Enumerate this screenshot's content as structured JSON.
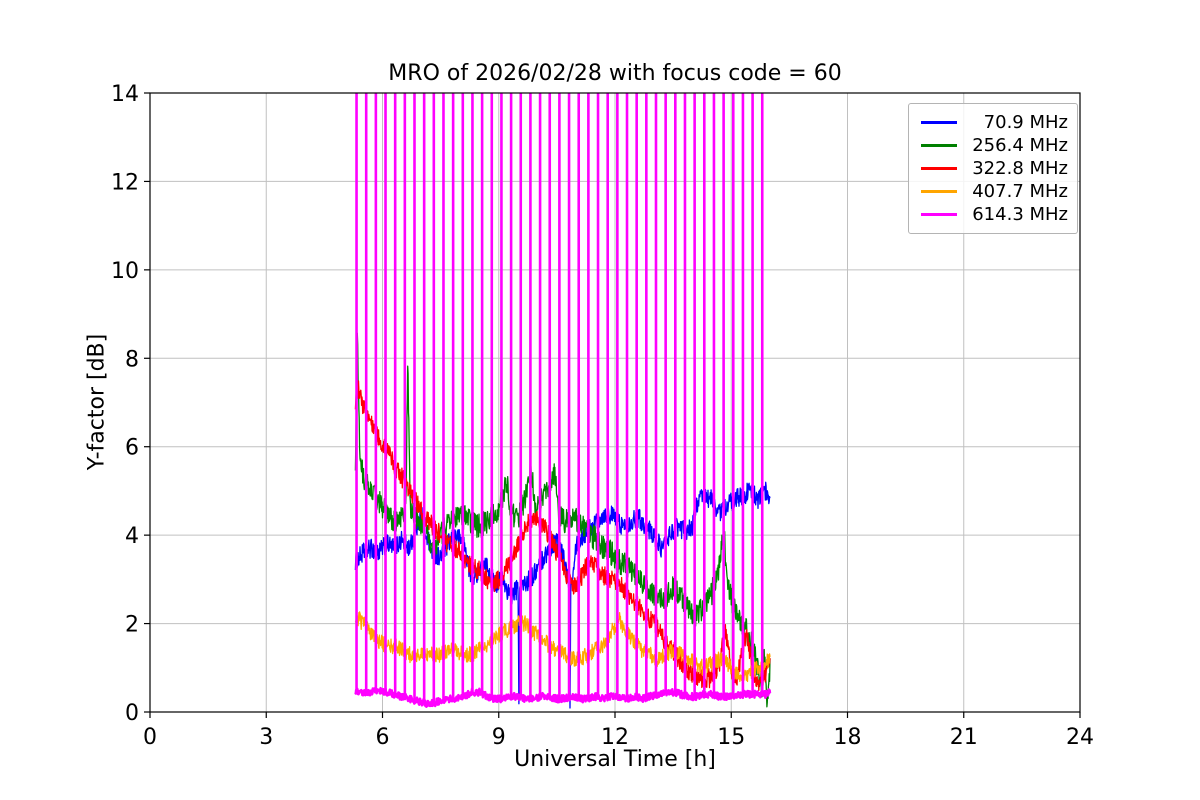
{
  "chart_data": {
    "type": "line",
    "title": "MRO of 2026/02/28 with focus code = 60",
    "xlabel": "Universal Time [h]",
    "ylabel": "Y-factor [dB]",
    "xlim": [
      0,
      24
    ],
    "ylim": [
      0,
      14
    ],
    "xticks": [
      0,
      3,
      6,
      9,
      12,
      15,
      18,
      21,
      24
    ],
    "yticks": [
      0,
      2,
      4,
      6,
      8,
      10,
      12,
      14
    ],
    "grid": true,
    "grid_color": "#c0c0c0",
    "axis_color": "#000000",
    "legend": {
      "position": "upper right",
      "entries": [
        "70.9 MHz",
        "256.4 MHz",
        "322.8 MHz",
        "407.7 MHz",
        "614.3 MHz"
      ]
    },
    "data_time_range_h": [
      5.3,
      16.0
    ],
    "series": [
      {
        "name": "70.9 MHz",
        "color": "#0000ff",
        "noise": 0.22,
        "width": 1.3,
        "points": [
          [
            5.3,
            3.4
          ],
          [
            5.5,
            3.6
          ],
          [
            5.7,
            3.7
          ],
          [
            5.9,
            3.6
          ],
          [
            6.1,
            3.8
          ],
          [
            6.3,
            3.7
          ],
          [
            6.5,
            3.9
          ],
          [
            6.7,
            3.7
          ],
          [
            6.9,
            4.2
          ],
          [
            7.0,
            4.6
          ],
          [
            7.1,
            4.1
          ],
          [
            7.3,
            3.6
          ],
          [
            7.5,
            3.5
          ],
          [
            7.7,
            3.8
          ],
          [
            7.9,
            4.0
          ],
          [
            8.1,
            3.8
          ],
          [
            8.3,
            3.0
          ],
          [
            8.5,
            3.2
          ],
          [
            8.7,
            3.3
          ],
          [
            8.9,
            2.9
          ],
          [
            9.1,
            3.0
          ],
          [
            9.3,
            2.6
          ],
          [
            9.5,
            2.8
          ],
          [
            9.52,
            0.1
          ],
          [
            9.54,
            2.8
          ],
          [
            9.7,
            2.9
          ],
          [
            9.9,
            3.1
          ],
          [
            10.1,
            3.4
          ],
          [
            10.3,
            3.7
          ],
          [
            10.5,
            3.9
          ],
          [
            10.7,
            3.4
          ],
          [
            10.82,
            2.9
          ],
          [
            10.84,
            0.3
          ],
          [
            10.86,
            2.9
          ],
          [
            11.0,
            3.8
          ],
          [
            11.2,
            4.0
          ],
          [
            11.4,
            4.2
          ],
          [
            11.6,
            4.4
          ],
          [
            11.8,
            4.5
          ],
          [
            12.0,
            4.4
          ],
          [
            12.2,
            4.2
          ],
          [
            12.4,
            4.3
          ],
          [
            12.6,
            4.4
          ],
          [
            12.8,
            4.2
          ],
          [
            13.0,
            4.0
          ],
          [
            13.2,
            3.7
          ],
          [
            13.4,
            4.0
          ],
          [
            13.6,
            4.2
          ],
          [
            13.8,
            4.1
          ],
          [
            14.0,
            4.2
          ],
          [
            14.1,
            4.7
          ],
          [
            14.3,
            4.9
          ],
          [
            14.5,
            4.8
          ],
          [
            14.7,
            4.5
          ],
          [
            14.9,
            4.7
          ],
          [
            15.1,
            4.8
          ],
          [
            15.3,
            4.9
          ],
          [
            15.5,
            5.0
          ],
          [
            15.7,
            4.8
          ],
          [
            15.9,
            5.0
          ],
          [
            16.0,
            4.9
          ]
        ]
      },
      {
        "name": "256.4 MHz",
        "color": "#008000",
        "noise": 0.28,
        "width": 1.3,
        "points": [
          [
            5.3,
            5.2
          ],
          [
            5.35,
            8.4
          ],
          [
            5.42,
            5.8
          ],
          [
            5.5,
            5.3
          ],
          [
            5.7,
            5.0
          ],
          [
            5.9,
            4.8
          ],
          [
            6.1,
            4.5
          ],
          [
            6.3,
            4.3
          ],
          [
            6.5,
            4.4
          ],
          [
            6.6,
            4.5
          ],
          [
            6.65,
            7.9
          ],
          [
            6.72,
            4.6
          ],
          [
            6.9,
            4.4
          ],
          [
            7.1,
            4.2
          ],
          [
            7.3,
            3.7
          ],
          [
            7.5,
            4.0
          ],
          [
            7.7,
            4.3
          ],
          [
            7.9,
            4.4
          ],
          [
            8.1,
            4.4
          ],
          [
            8.3,
            4.3
          ],
          [
            8.5,
            4.2
          ],
          [
            8.7,
            4.3
          ],
          [
            8.9,
            4.5
          ],
          [
            9.1,
            4.8
          ],
          [
            9.2,
            5.3
          ],
          [
            9.3,
            4.5
          ],
          [
            9.5,
            4.4
          ],
          [
            9.7,
            4.9
          ],
          [
            9.85,
            5.5
          ],
          [
            9.95,
            4.5
          ],
          [
            10.1,
            4.8
          ],
          [
            10.3,
            5.2
          ],
          [
            10.45,
            5.4
          ],
          [
            10.55,
            4.4
          ],
          [
            10.7,
            4.3
          ],
          [
            10.9,
            4.4
          ],
          [
            11.1,
            4.3
          ],
          [
            11.3,
            4.1
          ],
          [
            11.5,
            3.9
          ],
          [
            11.7,
            3.7
          ],
          [
            11.9,
            3.6
          ],
          [
            12.1,
            3.4
          ],
          [
            12.3,
            3.3
          ],
          [
            12.5,
            3.1
          ],
          [
            12.7,
            2.9
          ],
          [
            12.9,
            2.7
          ],
          [
            13.1,
            2.5
          ],
          [
            13.3,
            2.6
          ],
          [
            13.5,
            2.8
          ],
          [
            13.7,
            2.6
          ],
          [
            13.9,
            2.3
          ],
          [
            14.1,
            2.2
          ],
          [
            14.3,
            2.4
          ],
          [
            14.5,
            2.7
          ],
          [
            14.7,
            3.3
          ],
          [
            14.8,
            4.2
          ],
          [
            14.9,
            2.9
          ],
          [
            15.1,
            2.3
          ],
          [
            15.3,
            2.0
          ],
          [
            15.5,
            1.6
          ],
          [
            15.7,
            1.0
          ],
          [
            15.8,
            0.5
          ],
          [
            15.85,
            1.3
          ],
          [
            15.92,
            0.2
          ],
          [
            16.0,
            1.0
          ]
        ]
      },
      {
        "name": "322.8 MHz",
        "color": "#ff0000",
        "noise": 0.22,
        "width": 1.3,
        "points": [
          [
            5.3,
            6.9
          ],
          [
            5.37,
            7.3
          ],
          [
            5.5,
            6.9
          ],
          [
            5.7,
            6.6
          ],
          [
            5.9,
            6.2
          ],
          [
            6.1,
            5.9
          ],
          [
            6.3,
            5.6
          ],
          [
            6.5,
            5.3
          ],
          [
            6.7,
            5.0
          ],
          [
            6.9,
            4.7
          ],
          [
            7.1,
            4.4
          ],
          [
            7.3,
            4.2
          ],
          [
            7.5,
            4.0
          ],
          [
            7.7,
            3.8
          ],
          [
            7.9,
            3.7
          ],
          [
            8.1,
            3.5
          ],
          [
            8.3,
            3.3
          ],
          [
            8.5,
            3.2
          ],
          [
            8.7,
            3.0
          ],
          [
            8.9,
            2.9
          ],
          [
            9.1,
            3.1
          ],
          [
            9.3,
            3.4
          ],
          [
            9.5,
            3.8
          ],
          [
            9.7,
            4.2
          ],
          [
            9.9,
            4.4
          ],
          [
            10.1,
            4.3
          ],
          [
            10.3,
            4.0
          ],
          [
            10.5,
            3.6
          ],
          [
            10.7,
            3.2
          ],
          [
            10.9,
            2.8
          ],
          [
            11.1,
            3.0
          ],
          [
            11.3,
            3.4
          ],
          [
            11.5,
            3.3
          ],
          [
            11.7,
            3.1
          ],
          [
            11.9,
            3.0
          ],
          [
            12.1,
            2.9
          ],
          [
            12.3,
            2.7
          ],
          [
            12.5,
            2.5
          ],
          [
            12.7,
            2.3
          ],
          [
            12.9,
            2.1
          ],
          [
            13.1,
            1.9
          ],
          [
            13.3,
            1.6
          ],
          [
            13.5,
            1.4
          ],
          [
            13.7,
            1.1
          ],
          [
            13.9,
            0.9
          ],
          [
            14.1,
            0.8
          ],
          [
            14.3,
            0.7
          ],
          [
            14.5,
            0.8
          ],
          [
            14.7,
            1.1
          ],
          [
            14.85,
            1.9
          ],
          [
            15.0,
            0.9
          ],
          [
            15.15,
            0.7
          ],
          [
            15.3,
            1.5
          ],
          [
            15.4,
            1.8
          ],
          [
            15.55,
            0.9
          ],
          [
            15.7,
            0.7
          ],
          [
            15.85,
            0.8
          ],
          [
            16.0,
            1.3
          ]
        ]
      },
      {
        "name": "407.7 MHz",
        "color": "#ffa500",
        "noise": 0.18,
        "width": 1.3,
        "points": [
          [
            5.3,
            2.2
          ],
          [
            5.5,
            2.0
          ],
          [
            5.7,
            1.8
          ],
          [
            5.9,
            1.6
          ],
          [
            6.1,
            1.5
          ],
          [
            6.3,
            1.5
          ],
          [
            6.5,
            1.4
          ],
          [
            6.7,
            1.3
          ],
          [
            6.9,
            1.3
          ],
          [
            7.1,
            1.3
          ],
          [
            7.3,
            1.3
          ],
          [
            7.5,
            1.3
          ],
          [
            7.7,
            1.4
          ],
          [
            7.9,
            1.4
          ],
          [
            8.1,
            1.3
          ],
          [
            8.3,
            1.3
          ],
          [
            8.5,
            1.4
          ],
          [
            8.7,
            1.5
          ],
          [
            8.9,
            1.7
          ],
          [
            9.1,
            1.8
          ],
          [
            9.3,
            1.9
          ],
          [
            9.5,
            2.0
          ],
          [
            9.7,
            2.0
          ],
          [
            9.9,
            1.8
          ],
          [
            10.1,
            1.7
          ],
          [
            10.3,
            1.5
          ],
          [
            10.5,
            1.4
          ],
          [
            10.7,
            1.3
          ],
          [
            10.9,
            1.2
          ],
          [
            11.1,
            1.2
          ],
          [
            11.3,
            1.3
          ],
          [
            11.5,
            1.4
          ],
          [
            11.7,
            1.5
          ],
          [
            11.9,
            1.8
          ],
          [
            12.1,
            2.1
          ],
          [
            12.3,
            1.8
          ],
          [
            12.5,
            1.6
          ],
          [
            12.7,
            1.4
          ],
          [
            12.9,
            1.3
          ],
          [
            13.1,
            1.2
          ],
          [
            13.3,
            1.3
          ],
          [
            13.5,
            1.4
          ],
          [
            13.7,
            1.3
          ],
          [
            13.9,
            1.2
          ],
          [
            14.1,
            1.1
          ],
          [
            14.3,
            1.0
          ],
          [
            14.5,
            1.1
          ],
          [
            14.7,
            1.2
          ],
          [
            14.9,
            1.1
          ],
          [
            15.1,
            0.9
          ],
          [
            15.3,
            0.8
          ],
          [
            15.5,
            0.9
          ],
          [
            15.7,
            1.0
          ],
          [
            15.9,
            1.1
          ],
          [
            16.0,
            1.2
          ]
        ]
      },
      {
        "name": "614.3 MHz",
        "color": "#ff00ff",
        "noise": 0.08,
        "width": 2.5,
        "points": [
          [
            5.3,
            0.5
          ],
          [
            5.5,
            0.45
          ],
          [
            5.7,
            0.45
          ],
          [
            5.9,
            0.5
          ],
          [
            6.1,
            0.45
          ],
          [
            6.3,
            0.4
          ],
          [
            6.5,
            0.35
          ],
          [
            6.7,
            0.3
          ],
          [
            6.9,
            0.25
          ],
          [
            7.1,
            0.2
          ],
          [
            7.3,
            0.2
          ],
          [
            7.5,
            0.25
          ],
          [
            7.7,
            0.3
          ],
          [
            7.9,
            0.3
          ],
          [
            8.1,
            0.35
          ],
          [
            8.3,
            0.45
          ],
          [
            8.5,
            0.45
          ],
          [
            8.7,
            0.35
          ],
          [
            8.9,
            0.3
          ],
          [
            9.1,
            0.3
          ],
          [
            9.3,
            0.35
          ],
          [
            9.5,
            0.35
          ],
          [
            9.7,
            0.3
          ],
          [
            9.9,
            0.3
          ],
          [
            10.1,
            0.35
          ],
          [
            10.3,
            0.35
          ],
          [
            10.5,
            0.3
          ],
          [
            10.7,
            0.3
          ],
          [
            10.9,
            0.35
          ],
          [
            11.1,
            0.3
          ],
          [
            11.3,
            0.3
          ],
          [
            11.5,
            0.35
          ],
          [
            11.7,
            0.3
          ],
          [
            11.9,
            0.35
          ],
          [
            12.1,
            0.35
          ],
          [
            12.3,
            0.3
          ],
          [
            12.5,
            0.35
          ],
          [
            12.7,
            0.3
          ],
          [
            12.9,
            0.35
          ],
          [
            13.1,
            0.4
          ],
          [
            13.3,
            0.45
          ],
          [
            13.5,
            0.45
          ],
          [
            13.7,
            0.4
          ],
          [
            13.9,
            0.35
          ],
          [
            14.1,
            0.35
          ],
          [
            14.3,
            0.4
          ],
          [
            14.5,
            0.4
          ],
          [
            14.7,
            0.35
          ],
          [
            14.9,
            0.35
          ],
          [
            15.1,
            0.35
          ],
          [
            15.3,
            0.4
          ],
          [
            15.5,
            0.4
          ],
          [
            15.7,
            0.4
          ],
          [
            15.9,
            0.4
          ],
          [
            16.0,
            0.45
          ]
        ]
      }
    ],
    "spikes": {
      "series": "614.3 MHz",
      "color": "#ff00ff",
      "start": 5.33,
      "end": 15.8,
      "count": 43,
      "top": 14,
      "width": 2.6
    }
  }
}
